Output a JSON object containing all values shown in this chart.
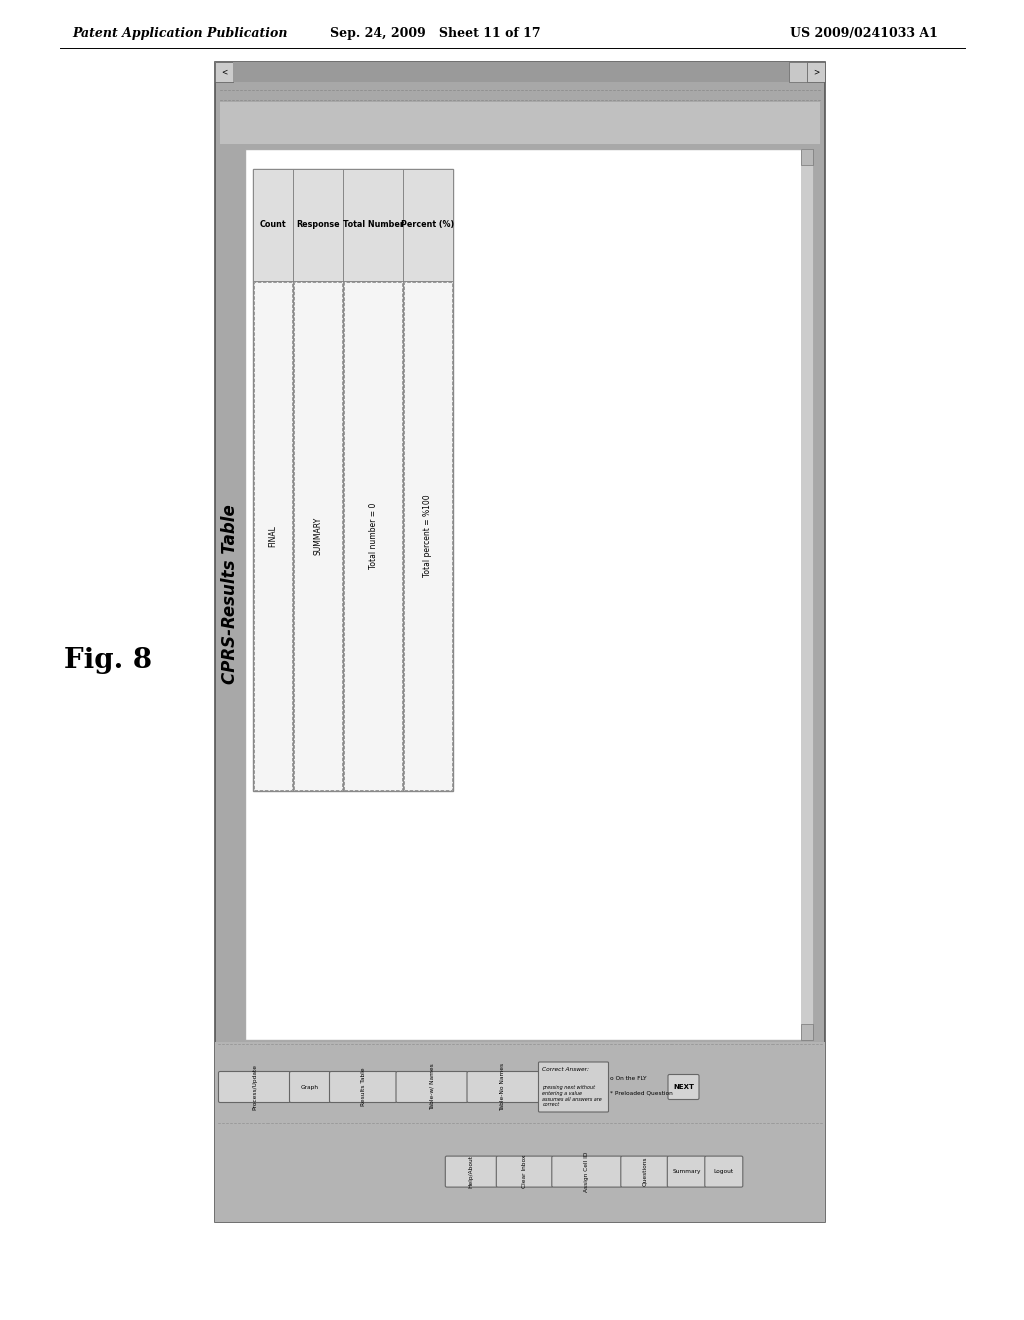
{
  "header_left": "Patent Application Publication",
  "header_center": "Sep. 24, 2009   Sheet 11 of 17",
  "header_right": "US 2009/0241033 A1",
  "fig_label": "Fig. 8",
  "title_text": "CPRS-Results Table",
  "table_columns": [
    "Count",
    "Response",
    "Total Number",
    "Percent (%)"
  ],
  "table_row1": [
    "FINAL",
    "SUMMARY",
    "Total number = 0",
    "Total percent = %100"
  ],
  "correct_answer_text": "pressing next without\nentering a value\nassumes all answers are\ncorrect",
  "on_fly_text": "On the FLY",
  "preloaded_text": "Preloaded Question",
  "buttons_row1": [
    "Process/Update",
    "Graph",
    "Results Table",
    "Table-w/ Names",
    "Table-No Names"
  ],
  "buttons_row2": [
    "Help/About",
    "Clear Inbox",
    "Assign Cell ID",
    "Questions",
    "Summary",
    "Logout"
  ],
  "next_btn": "NEXT",
  "bg_page": "#ffffff",
  "bg_outer": "#a8a8a8",
  "bg_screen": "#ffffff",
  "toolbar_color": "#b4b4b4",
  "table_header_bg": "#dedede",
  "table_cell_bg": "#f5f5f5",
  "btn_bg": "#d4d4d4"
}
